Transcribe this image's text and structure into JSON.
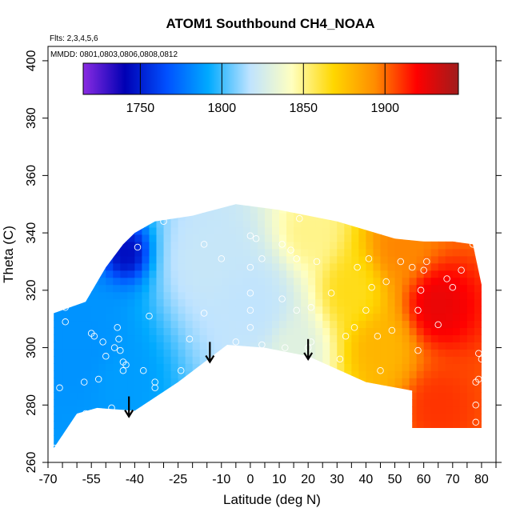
{
  "chart_data": {
    "type": "heatmap",
    "title": "ATOM1 Southbound CH4_NOAA",
    "flights_note": "Flts: 2,3,4,5,6",
    "dates_note": "MMDD: 0801,0803,0806,0808,0812",
    "xlabel": "Latitude (deg N)",
    "ylabel": "Theta (C)",
    "xlim": [
      -70,
      85
    ],
    "ylim": [
      260,
      405
    ],
    "x_ticks": [
      -70,
      -55,
      -40,
      -25,
      -10,
      0,
      10,
      20,
      30,
      40,
      50,
      60,
      70,
      80
    ],
    "x_tick_labels": [
      "-70",
      "-55",
      "-40",
      "-25",
      "-10",
      "0",
      "10",
      "20",
      "30",
      "40",
      "50",
      "60",
      "70",
      "80"
    ],
    "y_ticks": [
      260,
      280,
      300,
      320,
      340,
      360,
      380,
      400
    ],
    "y_tick_labels": [
      "260",
      "280",
      "300",
      "320",
      "340",
      "360",
      "380",
      "400"
    ],
    "colorbar": {
      "range": [
        1715,
        1945
      ],
      "ticks": [
        1750,
        1800,
        1850,
        1900
      ],
      "tick_labels": [
        "1750",
        "1800",
        "1850",
        "1900"
      ],
      "colors": [
        "#8a2be2",
        "#0000b4",
        "#0050ff",
        "#00aaff",
        "#bfe3ff",
        "#ffffc0",
        "#ffd700",
        "#ff8c00",
        "#ff0000",
        "#a01c1c"
      ]
    },
    "region": {
      "top": [
        [
          -68,
          312
        ],
        [
          -57,
          316
        ],
        [
          -50,
          328
        ],
        [
          -44,
          336
        ],
        [
          -40,
          340
        ],
        [
          -33,
          344
        ],
        [
          -20,
          346
        ],
        [
          -5,
          350
        ],
        [
          10,
          348
        ],
        [
          20,
          346
        ],
        [
          30,
          344
        ],
        [
          40,
          341
        ],
        [
          50,
          338
        ],
        [
          60,
          337
        ],
        [
          70,
          337
        ],
        [
          77,
          336
        ],
        [
          80,
          322
        ],
        [
          80,
          272
        ]
      ],
      "bottom": [
        [
          80,
          272
        ],
        [
          56,
          272
        ],
        [
          56,
          285
        ],
        [
          40,
          288
        ],
        [
          20,
          297
        ],
        [
          5,
          300
        ],
        [
          -8,
          301
        ],
        [
          -25,
          288
        ],
        [
          -40,
          278
        ],
        [
          -53,
          279
        ],
        [
          -60,
          277
        ],
        [
          -68,
          265
        ]
      ]
    },
    "ch4_field": [
      {
        "lat": -43,
        "theta": 333,
        "value": 1745,
        "spread": 7
      },
      {
        "lat": -60,
        "theta": 300,
        "value": 1785,
        "spread": 20
      },
      {
        "lat": -45,
        "theta": 290,
        "value": 1788,
        "spread": 12
      },
      {
        "lat": -15,
        "theta": 330,
        "value": 1820,
        "spread": 15
      },
      {
        "lat": 0,
        "theta": 315,
        "value": 1818,
        "spread": 15
      },
      {
        "lat": 15,
        "theta": 300,
        "value": 1830,
        "spread": 10
      },
      {
        "lat": 20,
        "theta": 340,
        "value": 1850,
        "spread": 10
      },
      {
        "lat": 35,
        "theta": 320,
        "value": 1865,
        "spread": 10
      },
      {
        "lat": 45,
        "theta": 300,
        "value": 1880,
        "spread": 10
      },
      {
        "lat": 52,
        "theta": 335,
        "value": 1895,
        "spread": 10
      },
      {
        "lat": 65,
        "theta": 315,
        "value": 1925,
        "spread": 10
      },
      {
        "lat": 65,
        "theta": 280,
        "value": 1910,
        "spread": 10
      }
    ],
    "sample_points": [
      [
        -67.5,
        265
      ],
      [
        -66,
        286
      ],
      [
        -64,
        309
      ],
      [
        -64,
        314
      ],
      [
        -57.5,
        288
      ],
      [
        -57,
        277
      ],
      [
        -55,
        305
      ],
      [
        -54,
        304
      ],
      [
        -52.5,
        289
      ],
      [
        -51,
        302
      ],
      [
        -50,
        297
      ],
      [
        -48,
        279
      ],
      [
        -47,
        300
      ],
      [
        -46,
        307
      ],
      [
        -45.5,
        303
      ],
      [
        -45,
        299
      ],
      [
        -44,
        295
      ],
      [
        -44,
        292
      ],
      [
        -43,
        294
      ],
      [
        -39,
        335
      ],
      [
        -37,
        292
      ],
      [
        -35,
        311
      ],
      [
        -33,
        286
      ],
      [
        -33,
        288
      ],
      [
        -30,
        344
      ],
      [
        -24,
        292
      ],
      [
        -21,
        303
      ],
      [
        -16,
        312
      ],
      [
        -16,
        336
      ],
      [
        -10,
        331
      ],
      [
        -5,
        302
      ],
      [
        0,
        307
      ],
      [
        0,
        299
      ],
      [
        0,
        313
      ],
      [
        0,
        319
      ],
      [
        0,
        328
      ],
      [
        0,
        339
      ],
      [
        2,
        338
      ],
      [
        4,
        301
      ],
      [
        4,
        331
      ],
      [
        11,
        317
      ],
      [
        11,
        336
      ],
      [
        12,
        300
      ],
      [
        14,
        334
      ],
      [
        16,
        313
      ],
      [
        16,
        331
      ],
      [
        17,
        345
      ],
      [
        20,
        300
      ],
      [
        21,
        314
      ],
      [
        21,
        302
      ],
      [
        23,
        330
      ],
      [
        28,
        319
      ],
      [
        31,
        296
      ],
      [
        33,
        304
      ],
      [
        36,
        307
      ],
      [
        37,
        328
      ],
      [
        40,
        313
      ],
      [
        41,
        331
      ],
      [
        42,
        321
      ],
      [
        44,
        304
      ],
      [
        45,
        292
      ],
      [
        47,
        323
      ],
      [
        49,
        306
      ],
      [
        52,
        330
      ],
      [
        56,
        328
      ],
      [
        58,
        299
      ],
      [
        58,
        313
      ],
      [
        59,
        320
      ],
      [
        60,
        327
      ],
      [
        61,
        330
      ],
      [
        65,
        308
      ],
      [
        68,
        324
      ],
      [
        70,
        321
      ],
      [
        73,
        327
      ],
      [
        77,
        336
      ],
      [
        78,
        274
      ],
      [
        78,
        280
      ],
      [
        78,
        288
      ],
      [
        79,
        289
      ],
      [
        79,
        298
      ],
      [
        80,
        296
      ]
    ],
    "flight_start_arrows": [
      {
        "lat": -42,
        "theta_top": 283,
        "theta_tip": 276
      },
      {
        "lat": -14,
        "theta_top": 302,
        "theta_tip": 295
      },
      {
        "lat": 20,
        "theta_top": 303,
        "theta_tip": 296
      }
    ]
  }
}
